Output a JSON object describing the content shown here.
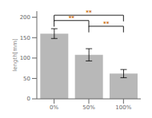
{
  "chart_data": {
    "type": "bar",
    "categories": [
      "0%",
      "50%",
      "100%"
    ],
    "values": [
      160,
      108,
      62
    ],
    "errors": [
      12,
      15,
      10
    ],
    "color": "#b8b8b8",
    "ylabel": "length[mm]",
    "ylim": [
      0,
      215
    ],
    "yticks": [
      0,
      50,
      100,
      150,
      200
    ],
    "grid": false,
    "annotations": [
      {
        "text": "**",
        "from": "0%",
        "to": "50%",
        "y": 192,
        "y_low": 177,
        "color": "#c8680a"
      },
      {
        "text": "**",
        "from": "0%",
        "to": "100%",
        "y": 205,
        "y_low": 190,
        "color": "#c8680a"
      },
      {
        "text": "**",
        "from": "50%",
        "to": "100%",
        "y": 178,
        "y_low": 163,
        "color": "#c8680a"
      }
    ]
  }
}
